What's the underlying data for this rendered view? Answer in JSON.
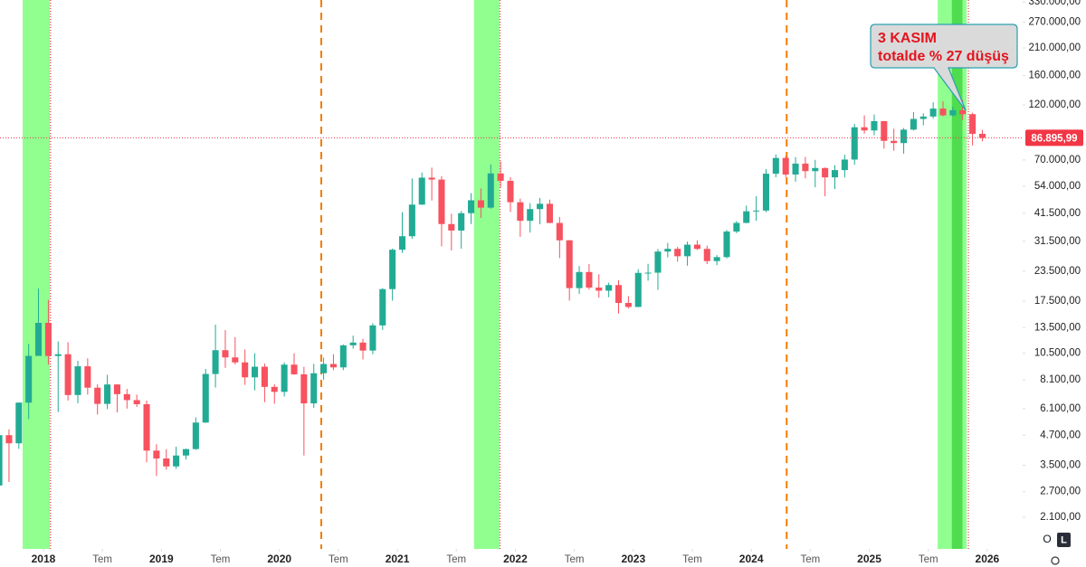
{
  "chart_data": {
    "type": "candlestick",
    "log_scale": true,
    "grid": false,
    "up_color": "#22ab94",
    "down_color": "#f7525f",
    "xlim": [
      2017.632,
      2026.3
    ],
    "ylim": [
      1540,
      336000
    ],
    "xticks": [
      2018,
      {
        "value": 2018.5,
        "label": "Tem"
      },
      2019,
      {
        "value": 2019.5,
        "label": "Tem"
      },
      2020,
      {
        "value": 2020.5,
        "label": "Tem"
      },
      2021,
      {
        "value": 2021.5,
        "label": "Tem"
      },
      2022,
      {
        "value": 2022.5,
        "label": "Tem"
      },
      2023,
      {
        "value": 2023.5,
        "label": "Tem"
      },
      2024,
      {
        "value": 2024.5,
        "label": "Tem"
      },
      2025,
      {
        "value": 2025.5,
        "label": "Tem"
      },
      2026
    ],
    "yticks": [
      {
        "value": 330000,
        "label": "330.000,00"
      },
      {
        "value": 270000,
        "label": "270.000,00"
      },
      {
        "value": 210000,
        "label": "210.000,00"
      },
      {
        "value": 160000,
        "label": "160.000,00"
      },
      {
        "value": 120000,
        "label": "120.000,00"
      },
      {
        "value": 70000,
        "label": "70.000,00"
      },
      {
        "value": 54000,
        "label": "54.000,00"
      },
      {
        "value": 41500,
        "label": "41.500,00"
      },
      {
        "value": 31500,
        "label": "31.500,00"
      },
      {
        "value": 23500,
        "label": "23.500,00"
      },
      {
        "value": 17500,
        "label": "17.500,00"
      },
      {
        "value": 13500,
        "label": "13.500,00"
      },
      {
        "value": 10500,
        "label": "10.500,00"
      },
      {
        "value": 8100,
        "label": "8.100,00"
      },
      {
        "value": 6100,
        "label": "6.100,00"
      },
      {
        "value": 4700,
        "label": "4.700,00"
      },
      {
        "value": 3500,
        "label": "3.500,00"
      },
      {
        "value": 2700,
        "label": "2.700,00"
      },
      {
        "value": 2100,
        "label": "2.100,00"
      }
    ],
    "x": [
      2017.625,
      2017.7083,
      2017.7917,
      2017.875,
      2017.9583,
      2018.0417,
      2018.125,
      2018.2083,
      2018.2917,
      2018.375,
      2018.4583,
      2018.5417,
      2018.625,
      2018.7083,
      2018.7917,
      2018.875,
      2018.9583,
      2019.0417,
      2019.125,
      2019.2083,
      2019.2917,
      2019.375,
      2019.4583,
      2019.5417,
      2019.625,
      2019.7083,
      2019.7917,
      2019.875,
      2019.9583,
      2020.0417,
      2020.125,
      2020.2083,
      2020.2917,
      2020.375,
      2020.4583,
      2020.5417,
      2020.625,
      2020.7083,
      2020.7917,
      2020.875,
      2020.9583,
      2021.0417,
      2021.125,
      2021.2083,
      2021.2917,
      2021.375,
      2021.4583,
      2021.5417,
      2021.625,
      2021.7083,
      2021.7917,
      2021.875,
      2021.9583,
      2022.0417,
      2022.125,
      2022.2083,
      2022.2917,
      2022.375,
      2022.4583,
      2022.5417,
      2022.625,
      2022.7083,
      2022.7917,
      2022.875,
      2022.9583,
      2023.0417,
      2023.125,
      2023.2083,
      2023.2917,
      2023.375,
      2023.4583,
      2023.5417,
      2023.625,
      2023.7083,
      2023.7917,
      2023.875,
      2023.9583,
      2024.0417,
      2024.125,
      2024.2083,
      2024.2917,
      2024.375,
      2024.4583,
      2024.5417,
      2024.625,
      2024.7083,
      2024.7917,
      2024.875,
      2024.9583,
      2025.0417,
      2025.125,
      2025.2083,
      2025.2917,
      2025.375,
      2025.4583,
      2025.5417,
      2025.625,
      2025.7083,
      2025.7917,
      2025.875,
      2025.9583
    ],
    "open": [
      2870,
      4700,
      4340,
      6470,
      10230,
      14150,
      10220,
      10400,
      6970,
      9240,
      7490,
      6390,
      7730,
      7030,
      6630,
      6370,
      4040,
      3740,
      3460,
      3850,
      4100,
      5320,
      8570,
      10820,
      10080,
      9600,
      8290,
      9200,
      7550,
      7190,
      9390,
      8540,
      6420,
      8630,
      9450,
      9140,
      11350,
      11660,
      10780,
      13800,
      19700,
      28990,
      33100,
      45140,
      58800,
      57700,
      37300,
      35000,
      41500,
      47100,
      43800,
      61300,
      57000,
      46200,
      38500,
      43200,
      45500,
      37700,
      31800,
      19900,
      23300,
      20000,
      19400,
      20500,
      17200,
      16540,
      23100,
      23150,
      28480,
      29250,
      27200,
      30470,
      29230,
      25940,
      26970,
      34650,
      37720,
      42280,
      42580,
      61130,
      71330,
      60640,
      67490,
      62680,
      64630,
      58970,
      63330,
      70220,
      96400,
      93430,
      102400,
      84370,
      82550,
      94200,
      104600,
      107100,
      115800,
      108300,
      114000,
      109600,
      90400
    ],
    "high": [
      4740,
      4980,
      6470,
      11500,
      19800,
      17700,
      11800,
      11700,
      9750,
      9990,
      7760,
      8500,
      7760,
      7400,
      7000,
      6600,
      4300,
      4100,
      4200,
      4120,
      5600,
      9000,
      13900,
      13200,
      12300,
      10900,
      10500,
      9500,
      7750,
      9600,
      10500,
      9200,
      9470,
      10070,
      10400,
      11450,
      12480,
      12100,
      14100,
      19900,
      29300,
      41900,
      58350,
      61800,
      64900,
      59600,
      41300,
      42400,
      50500,
      52900,
      67000,
      69000,
      59100,
      47900,
      45800,
      48200,
      47400,
      40000,
      31900,
      24700,
      25200,
      22800,
      21000,
      21500,
      18400,
      23950,
      25250,
      29200,
      31000,
      29800,
      31400,
      31800,
      30200,
      27500,
      35200,
      38400,
      44700,
      48970,
      64000,
      73800,
      72700,
      71900,
      72000,
      70000,
      65000,
      66500,
      73600,
      99600,
      108300,
      109300,
      102500,
      95000,
      95700,
      111900,
      110600,
      123200,
      124500,
      117900,
      126200,
      111200,
      94000
    ],
    "low": [
      2670,
      2970,
      4110,
      5500,
      10900,
      9400,
      5900,
      6600,
      6430,
      7000,
      5760,
      6070,
      5880,
      6100,
      6200,
      3600,
      3150,
      3350,
      3380,
      3700,
      4070,
      5300,
      7500,
      9100,
      9400,
      7700,
      7300,
      6500,
      6400,
      6870,
      8500,
      3850,
      6150,
      8100,
      8900,
      8900,
      10980,
      9880,
      10400,
      13200,
      17600,
      28100,
      32300,
      45000,
      47000,
      30000,
      28800,
      29300,
      37300,
      39600,
      43300,
      53300,
      42000,
      32900,
      34300,
      37200,
      37600,
      26700,
      17600,
      18800,
      19600,
      18100,
      18200,
      15500,
      16300,
      16500,
      21400,
      19550,
      26900,
      25800,
      24800,
      28900,
      25200,
      24900,
      26600,
      34100,
      37600,
      38500,
      41900,
      59000,
      59200,
      56500,
      58400,
      53500,
      49000,
      52600,
      58900,
      66800,
      90500,
      89200,
      78200,
      76600,
      74400,
      93400,
      98200,
      105100,
      107300,
      107300,
      103500,
      80600,
      84000
    ],
    "close": [
      4700,
      4340,
      6470,
      10230,
      14150,
      10220,
      10400,
      6970,
      9240,
      7490,
      6390,
      7730,
      7030,
      6630,
      6370,
      4040,
      3740,
      3460,
      3850,
      4100,
      5320,
      8570,
      10820,
      10080,
      9600,
      8290,
      9200,
      7550,
      7190,
      9390,
      8540,
      6420,
      8630,
      9450,
      9140,
      11350,
      11660,
      10780,
      13800,
      19700,
      28990,
      33100,
      45140,
      58800,
      57700,
      37300,
      35000,
      41500,
      47100,
      43800,
      61300,
      57000,
      46200,
      38500,
      43200,
      45500,
      37700,
      31800,
      19900,
      23300,
      20000,
      19400,
      20500,
      17200,
      16540,
      23100,
      23150,
      28480,
      29250,
      27200,
      30470,
      29230,
      25940,
      26970,
      34650,
      37720,
      42280,
      42580,
      61130,
      71330,
      60640,
      67490,
      62680,
      64630,
      58970,
      63330,
      70220,
      96400,
      93430,
      102400,
      84370,
      82550,
      94200,
      104600,
      107100,
      115800,
      108300,
      114000,
      109600,
      90400,
      86895.99
    ],
    "highlight_ranges": [
      {
        "range": [
          2017.824,
          2018.054
        ],
        "color": "#90ff90"
      },
      {
        "range": [
          2021.65,
          2021.865
        ],
        "color": "#90ff90"
      },
      {
        "range": [
          2025.58,
          2025.825
        ],
        "color": "#90ff90"
      },
      {
        "range": [
          2025.7,
          2025.79
        ],
        "color": "#4fdc4f"
      }
    ],
    "red_dotted_lines": [
      2018.06,
      2021.87,
      2025.84
    ],
    "orange_dashed_lines": [
      2020.355,
      2024.3
    ],
    "last_price": {
      "value": 86895.99,
      "label": "86.895,99"
    },
    "annotation": {
      "lines": [
        "3 KASIM",
        "totalde % 27 düşüş"
      ]
    }
  },
  "toolbar": {
    "buttons": [
      "O",
      "L"
    ]
  }
}
